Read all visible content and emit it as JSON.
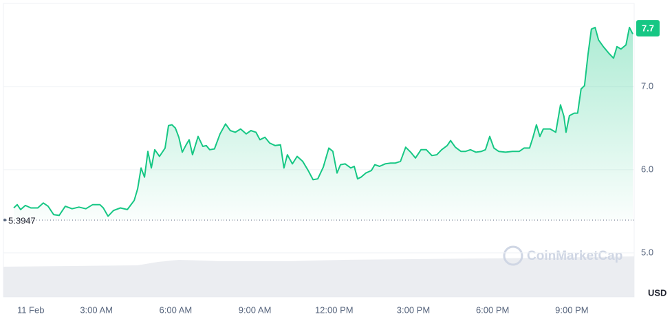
{
  "chart_data": {
    "type": "line",
    "x": [
      -0.13,
      0,
      0.13,
      0.31,
      0.52,
      0.78,
      0.99,
      1.17,
      1.38,
      1.59,
      1.82,
      2.08,
      2.34,
      2.6,
      2.86,
      3.13,
      3.26,
      3.44,
      3.65,
      3.91,
      4.17,
      4.43,
      4.56,
      4.69,
      4.82,
      4.95,
      5.08,
      5.21,
      5.39,
      5.6,
      5.73,
      5.86,
      5.99,
      6.12,
      6.25,
      6.38,
      6.51,
      6.64,
      6.85,
      7.03,
      7.16,
      7.29,
      7.47,
      7.68,
      7.89,
      8.07,
      8.26,
      8.46,
      8.67,
      8.85,
      9.04,
      9.19,
      9.38,
      9.56,
      9.77,
      9.97,
      10.1,
      10.23,
      10.42,
      10.6,
      10.81,
      11.02,
      11.2,
      11.38,
      11.59,
      11.8,
      11.95,
      12.11,
      12.24,
      12.42,
      12.63,
      12.76,
      12.89,
      13.02,
      13.2,
      13.41,
      13.54,
      13.72,
      13.93,
      14.14,
      14.32,
      14.51,
      14.71,
      14.9,
      15.08,
      15.29,
      15.49,
      15.7,
      15.89,
      16.07,
      16.28,
      16.41,
      16.59,
      16.8,
      16.98,
      17.16,
      17.37,
      17.58,
      17.73,
      17.89,
      18.05,
      18.23,
      18.49,
      18.75,
      19.01,
      19.19,
      19.4,
      19.53,
      19.66,
      19.79,
      19.92,
      20.18,
      20.39,
      20.57,
      20.7,
      20.78,
      20.91,
      21.09,
      21.22,
      21.35,
      21.48,
      21.61,
      21.74,
      21.88,
      22.01,
      22.19,
      22.4,
      22.58,
      22.71,
      22.86,
      23.05,
      23.18,
      23.31
    ],
    "series": [
      {
        "color": "#16c784",
        "values": [
          5.54,
          5.58,
          5.52,
          5.57,
          5.54,
          5.54,
          5.6,
          5.56,
          5.46,
          5.45,
          5.56,
          5.53,
          5.55,
          5.53,
          5.58,
          5.58,
          5.54,
          5.44,
          5.51,
          5.54,
          5.52,
          5.63,
          5.77,
          6.02,
          5.91,
          6.22,
          6.02,
          6.24,
          6.16,
          6.26,
          6.53,
          6.54,
          6.5,
          6.39,
          6.21,
          6.29,
          6.36,
          6.18,
          6.4,
          6.28,
          6.29,
          6.24,
          6.25,
          6.43,
          6.55,
          6.47,
          6.45,
          6.49,
          6.43,
          6.47,
          6.45,
          6.36,
          6.39,
          6.32,
          6.29,
          6.3,
          6.02,
          6.18,
          6.07,
          6.16,
          6.1,
          5.99,
          5.88,
          5.89,
          6.03,
          6.26,
          6.22,
          5.96,
          6.06,
          6.07,
          6.02,
          6.04,
          5.89,
          5.91,
          5.96,
          5.99,
          6.06,
          6.04,
          6.07,
          6.08,
          6.08,
          6.1,
          6.27,
          6.21,
          6.14,
          6.24,
          6.24,
          6.17,
          6.18,
          6.24,
          6.29,
          6.35,
          6.27,
          6.22,
          6.22,
          6.24,
          6.21,
          6.22,
          6.24,
          6.4,
          6.26,
          6.22,
          6.21,
          6.22,
          6.22,
          6.26,
          6.26,
          6.39,
          6.54,
          6.4,
          6.49,
          6.49,
          6.45,
          6.78,
          6.64,
          6.45,
          6.65,
          6.68,
          6.68,
          6.97,
          7.01,
          7.38,
          7.69,
          7.71,
          7.56,
          7.48,
          7.4,
          7.34,
          7.48,
          7.45,
          7.5,
          7.71,
          7.63
        ]
      }
    ],
    "xlim": [
      -0.52,
      23.36
    ],
    "xticks": [
      {
        "value": 0,
        "label": "11 Feb"
      },
      {
        "value": 3,
        "label": "3:00 AM"
      },
      {
        "value": 6,
        "label": "6:00 AM"
      },
      {
        "value": 9,
        "label": "9:00 AM"
      },
      {
        "value": 12,
        "label": "12:00 PM"
      },
      {
        "value": 15,
        "label": "3:00 PM"
      },
      {
        "value": 18,
        "label": "6:00 PM"
      },
      {
        "value": 21,
        "label": "9:00 PM"
      }
    ],
    "ylim": [
      4.47,
      8.04
    ],
    "yticks": [
      {
        "value": 5,
        "label": "5.0"
      },
      {
        "value": 6,
        "label": "6.0"
      },
      {
        "value": 7,
        "label": "7.0"
      }
    ],
    "y_unit": "USD",
    "baseline": 5.3947,
    "last_price": 7.7,
    "watermark": "CoinMarketCap",
    "grid": true
  }
}
